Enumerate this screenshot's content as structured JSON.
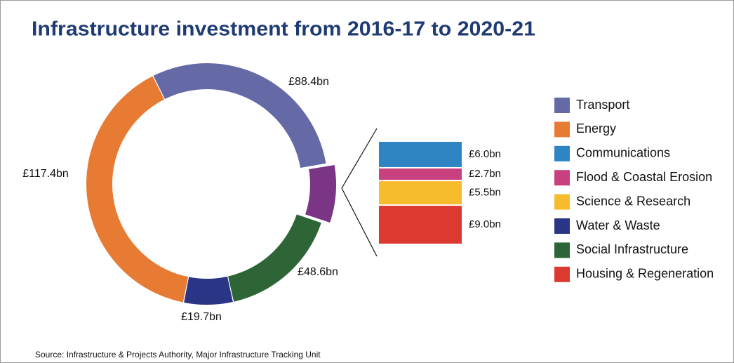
{
  "chart_data": {
    "type": "donut",
    "title": "Infrastructure investment from 2016-17 to 2020-21",
    "source": "Source: Infrastructure & Projects Authority, Major Infrastructure Tracking Unit",
    "categories": [
      "Transport",
      "Energy",
      "Communications",
      "Flood & Coastal Erosion",
      "Science & Research",
      "Water & Waste",
      "Social Infrastructure",
      "Housing & Regeneration"
    ],
    "values": [
      88.4,
      117.4,
      6.0,
      2.7,
      5.5,
      19.7,
      48.6,
      9.0
    ],
    "value_labels": [
      "£88.4bn",
      "£117.4bn",
      "£6.0bn",
      "£2.7bn",
      "£5.5bn",
      "£19.7bn",
      "£48.6bn",
      "£9.0bn"
    ],
    "colors": [
      "#656aa6",
      "#e77b34",
      "#2f85c4",
      "#c9407f",
      "#f6bc2e",
      "#2b3586",
      "#2d6537",
      "#dc3a31"
    ],
    "breakout_color": "#7b3585",
    "legend": "right"
  }
}
